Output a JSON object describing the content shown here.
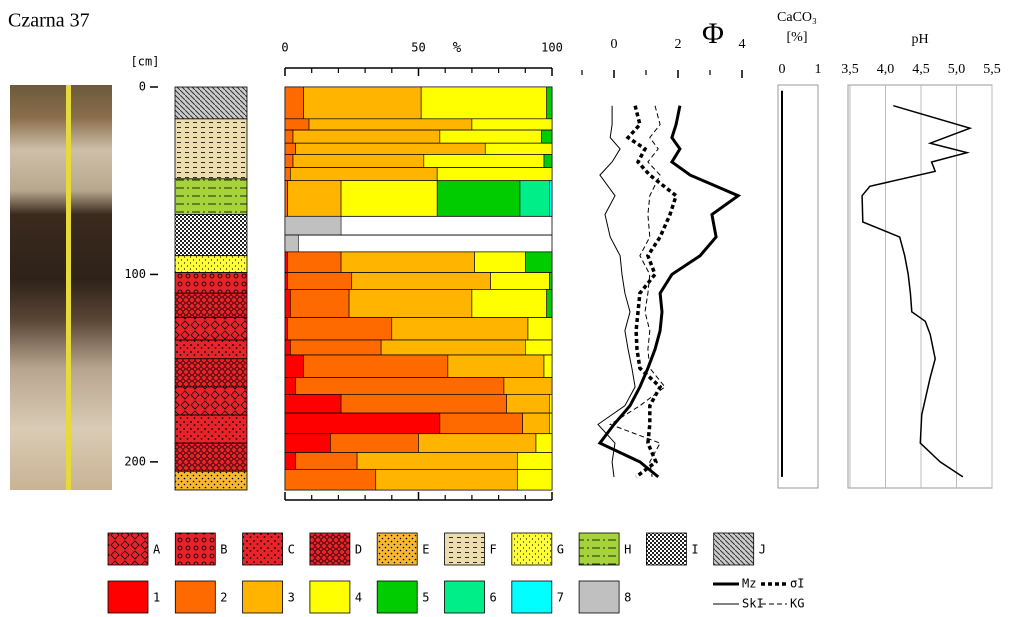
{
  "title": "Czarna 37",
  "chart_data": [
    {
      "type": "column",
      "ylabel": "[cm]",
      "ylim": [
        0,
        215
      ],
      "yticks": [
        0,
        100,
        200
      ],
      "codes": [
        "A",
        "B",
        "C",
        "D",
        "E",
        "F",
        "G",
        "H",
        "I",
        "J"
      ],
      "layers": {
        "top": [
          0,
          17,
          49,
          68,
          90,
          99,
          110,
          123,
          135,
          145,
          160,
          175,
          190,
          205
        ],
        "bottom": [
          17,
          49,
          68,
          90,
          99,
          110,
          123,
          135,
          145,
          160,
          175,
          190,
          205,
          215
        ],
        "code": [
          "J",
          "F",
          "H",
          "I",
          "G",
          "B",
          "D",
          "A",
          "C",
          "D",
          "A",
          "C",
          "D",
          "E"
        ]
      }
    },
    {
      "type": "bar",
      "orientation": "horizontal",
      "xlabel": "%",
      "xlim": [
        0,
        100
      ],
      "xticks": [
        0,
        50,
        100
      ],
      "xminorticks": [
        10,
        20,
        30,
        40,
        60,
        70,
        80,
        90
      ],
      "ylim": [
        0,
        215
      ],
      "depth_top": [
        0,
        17,
        23,
        30,
        36,
        43,
        50,
        69,
        79,
        88,
        99,
        108,
        123,
        135,
        143,
        155,
        164,
        174,
        185,
        195,
        204
      ],
      "depth_bottom": [
        17,
        23,
        30,
        36,
        43,
        50,
        69,
        79,
        88,
        99,
        108,
        123,
        135,
        143,
        155,
        164,
        174,
        185,
        195,
        204,
        215
      ],
      "series": [
        {
          "name": "1",
          "color": "#ff0000",
          "values": [
            0,
            0,
            0,
            0,
            0,
            0,
            0,
            0,
            0,
            1,
            1,
            2,
            1,
            2,
            7,
            4,
            21,
            58,
            17,
            4,
            0
          ]
        },
        {
          "name": "2",
          "color": "#ff6a00",
          "values": [
            7,
            9,
            3,
            4,
            3,
            2,
            1,
            0,
            0,
            20,
            24,
            22,
            39,
            34,
            54,
            78,
            62,
            31,
            33,
            23,
            34
          ]
        },
        {
          "name": "3",
          "color": "#ffb400",
          "values": [
            44,
            61,
            55,
            71,
            49,
            55,
            20,
            0,
            0,
            50,
            52,
            46,
            51,
            54,
            36,
            18,
            16,
            10,
            44,
            60,
            53
          ]
        },
        {
          "name": "4",
          "color": "#ffff00",
          "values": [
            47,
            30,
            38,
            25,
            45,
            43,
            36,
            0,
            0,
            19,
            22,
            28,
            9,
            10,
            3,
            0,
            1,
            1,
            6,
            13,
            13
          ]
        },
        {
          "name": "5",
          "color": "#00cc00",
          "values": [
            2,
            0,
            4,
            0,
            3,
            0,
            31,
            0,
            0,
            10,
            1,
            2,
            0,
            0,
            0,
            0,
            0,
            0,
            0,
            0,
            0
          ]
        },
        {
          "name": "6",
          "color": "#00ee88",
          "values": [
            0,
            0,
            0,
            0,
            0,
            0,
            11,
            0,
            0,
            0,
            0,
            0,
            0,
            0,
            0,
            0,
            0,
            0,
            0,
            0,
            0
          ]
        },
        {
          "name": "7",
          "color": "#00ffff",
          "values": [
            0,
            0,
            0,
            0,
            0,
            0,
            1,
            0,
            0,
            0,
            0,
            0,
            0,
            0,
            0,
            0,
            0,
            0,
            0,
            0,
            0
          ]
        },
        {
          "name": "8",
          "color": "#c0c0c0",
          "values": [
            0,
            0,
            0,
            0,
            0,
            0,
            0,
            21,
            5,
            0,
            0,
            0,
            0,
            0,
            0,
            0,
            0,
            0,
            0,
            0,
            0
          ]
        }
      ]
    },
    {
      "type": "line",
      "xlabel": "Φ",
      "xlim": [
        -1,
        4
      ],
      "xticks": [
        0,
        2,
        4
      ],
      "xminorticks": [
        -1,
        1,
        3
      ],
      "ylim": [
        0,
        215
      ],
      "depth": [
        10,
        20,
        27,
        33,
        40,
        47,
        58,
        68,
        80,
        90,
        100,
        110,
        120,
        130,
        140,
        150,
        160,
        170,
        180,
        190,
        200,
        208
      ],
      "series": [
        {
          "name": "Mz",
          "color": "#000000",
          "width": 3,
          "dash": "solid",
          "values": [
            2.06,
            1.94,
            1.81,
            2.06,
            1.81,
            2.38,
            3.88,
            3.06,
            3.19,
            2.69,
            1.81,
            1.44,
            1.5,
            1.44,
            1.28,
            1.06,
            0.81,
            0.5,
            0,
            -0.44,
            0.81,
            1.38
          ]
        },
        {
          "name": "σI",
          "color": "#000000",
          "width": 3.5,
          "dash": "dotted",
          "values": [
            0.66,
            0.81,
            0.44,
            0.97,
            0.75,
            1.12,
            1.94,
            1.75,
            1.44,
            1.06,
            1.28,
            0.81,
            0.75,
            0.69,
            0.72,
            0.81,
            1.44,
            1.12,
            1.12,
            1.06,
            1.31,
            0.69
          ]
        },
        {
          "name": "SkI",
          "color": "#000000",
          "width": 1,
          "dash": "solid",
          "values": [
            -0.06,
            -0.06,
            -0.12,
            0.19,
            -0.06,
            -0.44,
            0.03,
            -0.28,
            -0.12,
            0.19,
            0.25,
            0.34,
            0.5,
            0.34,
            0.44,
            0.56,
            0.66,
            0.34,
            -0.5,
            0.03,
            -0.06,
            0
          ]
        },
        {
          "name": "KG",
          "color": "#000000",
          "width": 1,
          "dash": "dashed",
          "values": [
            1.28,
            1.44,
            1.12,
            1.38,
            1.06,
            1.44,
            1.12,
            1.06,
            1.12,
            0.81,
            1.12,
            1.06,
            0.97,
            1.12,
            1.06,
            1.12,
            1.59,
            0.81,
            -0.12,
            1.44,
            1.12,
            1.19
          ]
        }
      ]
    },
    {
      "type": "line",
      "title": "CaCO₃",
      "xlabel": "[%]",
      "xlim": [
        0,
        1
      ],
      "xticks": [
        0,
        1
      ],
      "ylim": [
        0,
        215
      ],
      "depth": [
        2,
        208
      ],
      "series": [
        {
          "color": "#000000",
          "width": 2,
          "dash": "solid",
          "values": [
            0,
            0
          ]
        }
      ]
    },
    {
      "type": "line",
      "title": "pH",
      "xlim": [
        3.5,
        5.5
      ],
      "grid": true,
      "xticks": [
        {
          "value": 3.5,
          "label": "3,5"
        },
        {
          "value": 4.0,
          "label": "4,0"
        },
        {
          "value": 4.5,
          "label": "4,5"
        },
        {
          "value": 5.0,
          "label": "5,0"
        },
        {
          "value": 5.5,
          "label": "5,5"
        }
      ],
      "ylim": [
        0,
        215
      ],
      "depth": [
        10,
        22,
        30,
        35,
        40,
        45,
        53,
        58,
        72,
        80,
        90,
        100,
        110,
        120,
        125,
        132,
        145,
        155,
        175,
        190,
        200,
        208
      ],
      "series": [
        {
          "color": "#000000",
          "width": 1.5,
          "dash": "solid",
          "values": [
            4.11,
            5.19,
            4.63,
            5.15,
            4.65,
            4.7,
            3.78,
            3.67,
            3.68,
            4.2,
            4.27,
            4.32,
            4.35,
            4.37,
            4.56,
            4.63,
            4.7,
            4.63,
            4.51,
            4.49,
            4.77,
            5.09
          ]
        }
      ]
    }
  ]
}
